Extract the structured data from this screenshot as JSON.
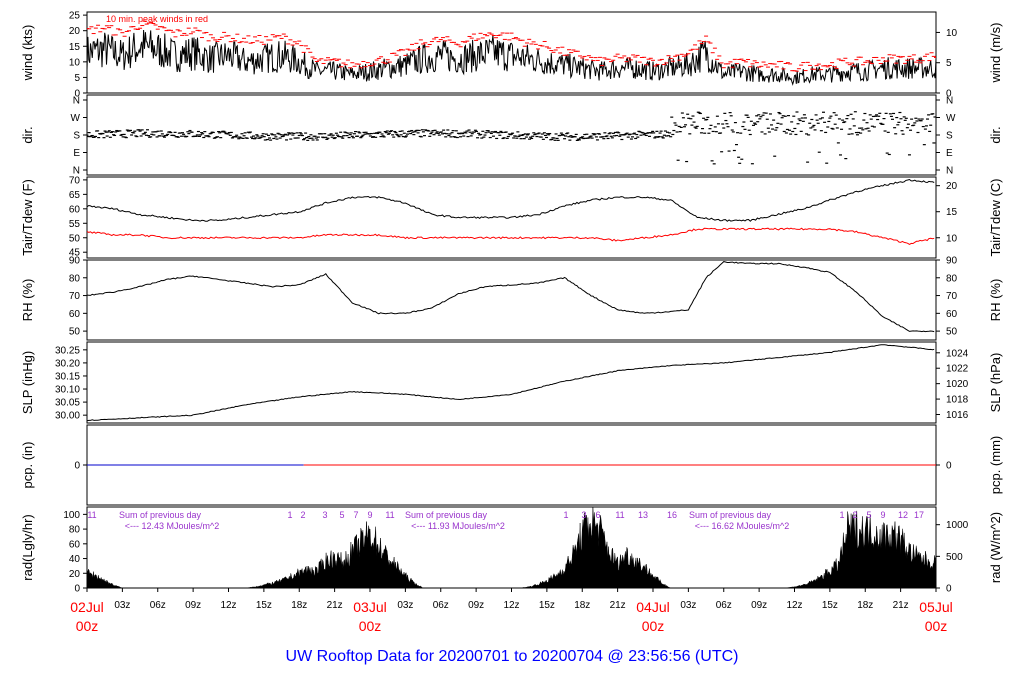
{
  "footer_title": "UW Rooftop Data for 20200701  to  20200704 @ 23:56:56  (UTC)",
  "colors": {
    "axis": "#000000",
    "primary": "#000000",
    "secondary": "#ff0000",
    "precip": "#0000cc",
    "summary": "#9933cc",
    "time_label": "#ff0000",
    "title": "#0000ff"
  },
  "chart_data": [
    {
      "type": "line",
      "id": "wind",
      "ylabel_left": "wind (kts)",
      "ylabel_right": "wind (m/s)",
      "annotation": "10 min. peak winds in red",
      "ylim": [
        0,
        26
      ],
      "yticks_left": [
        "0",
        "5",
        "10",
        "15",
        "20",
        "25"
      ],
      "yticks_right": [
        "0",
        "5",
        "10"
      ],
      "series": [
        {
          "values_x": [
            0,
            2,
            4,
            6,
            8,
            10,
            12,
            14,
            16,
            18,
            20,
            22,
            24,
            26,
            28,
            30,
            32,
            34,
            36,
            38,
            40,
            42,
            44,
            46,
            48,
            50,
            52,
            54,
            56,
            58,
            60,
            62,
            64,
            66,
            68,
            70,
            72,
            74,
            76,
            78,
            80,
            82,
            84,
            86,
            88,
            90,
            92,
            94,
            96
          ],
          "values": [
            13,
            14,
            12,
            15,
            14,
            12,
            13,
            11,
            12,
            10,
            11,
            12,
            10,
            7,
            7,
            6,
            7,
            8,
            9,
            11,
            12,
            11,
            12,
            13,
            12,
            11,
            10,
            9,
            8,
            7,
            8,
            8,
            7,
            8,
            9,
            13,
            6,
            7,
            6,
            6,
            5,
            6,
            6,
            7,
            7,
            8,
            8,
            8,
            8
          ]
        },
        {
          "values_x": [
            0,
            2,
            4,
            6,
            8,
            10,
            12,
            14,
            16,
            18,
            20,
            22,
            24,
            26,
            28,
            30,
            32,
            34,
            36,
            38,
            40,
            42,
            44,
            46,
            48,
            50,
            52,
            54,
            56,
            58,
            60,
            62,
            64,
            66,
            68,
            70,
            72,
            74,
            76,
            78,
            80,
            82,
            84,
            86,
            88,
            90,
            92,
            94,
            96
          ],
          "values": [
            20,
            21,
            19,
            22,
            21,
            19,
            20,
            18,
            18,
            17,
            17,
            18,
            16,
            10,
            10,
            9,
            10,
            11,
            13,
            16,
            17,
            16,
            18,
            19,
            18,
            16,
            15,
            13,
            12,
            10,
            11,
            11,
            10,
            11,
            13,
            17,
            9,
            10,
            9,
            9,
            8,
            9,
            9,
            10,
            10,
            11,
            11,
            11,
            12
          ]
        }
      ]
    },
    {
      "type": "scatter",
      "id": "dir",
      "ylabel_left": "dir.",
      "ylabel_right": "dir.",
      "ylim": [
        0,
        360
      ],
      "yticks_left": [
        "N",
        "W",
        "S",
        "E",
        "N"
      ],
      "yticks_right": [
        "N",
        "W",
        "S",
        "E",
        "N"
      ]
    },
    {
      "type": "line",
      "id": "temp",
      "ylabel_left": "Tair/Tdew (F)",
      "ylabel_right": "Tair/Tdew (C)",
      "ylim": [
        43,
        71
      ],
      "yticks_left": [
        "45",
        "50",
        "55",
        "60",
        "65",
        "70"
      ],
      "yticks_right": [
        "10",
        "15",
        "20"
      ],
      "series": [
        {
          "values_x": [
            0,
            3,
            6,
            9,
            12,
            15,
            18,
            21,
            24,
            27,
            30,
            33,
            36,
            39,
            42,
            45,
            48,
            51,
            54,
            57,
            60,
            63,
            66,
            69,
            72,
            75,
            78,
            81,
            84,
            87,
            90,
            93,
            96
          ],
          "values": [
            61,
            60,
            58,
            57,
            56,
            56,
            57,
            58,
            59,
            62,
            64,
            64,
            62,
            58,
            57,
            57,
            57,
            58,
            61,
            63,
            64,
            64,
            63,
            57,
            56,
            56,
            58,
            60,
            63,
            66,
            68,
            70,
            69
          ]
        },
        {
          "values_x": [
            0,
            3,
            6,
            9,
            12,
            15,
            18,
            21,
            24,
            27,
            30,
            33,
            36,
            39,
            42,
            45,
            48,
            51,
            54,
            57,
            60,
            63,
            66,
            69,
            72,
            75,
            78,
            81,
            84,
            87,
            90,
            93,
            96
          ],
          "values": [
            52,
            51,
            51,
            50,
            50,
            50,
            50,
            50,
            50,
            51,
            51,
            51,
            50,
            50,
            50,
            50,
            50,
            50,
            50,
            50,
            49,
            50,
            51,
            53,
            53,
            53,
            53,
            53,
            53,
            52,
            50,
            48,
            50
          ]
        }
      ]
    },
    {
      "type": "line",
      "id": "rh",
      "ylabel_left": "RH (%)",
      "ylabel_right": "RH (%)",
      "ylim": [
        45,
        90
      ],
      "yticks_left": [
        "50",
        "60",
        "70",
        "80",
        "90"
      ],
      "yticks_right": [
        "50",
        "60",
        "70",
        "80",
        "90"
      ],
      "series": [
        {
          "values_x": [
            0,
            3,
            6,
            9,
            12,
            15,
            18,
            21,
            24,
            27,
            30,
            33,
            36,
            39,
            42,
            45,
            48,
            51,
            54,
            57,
            60,
            63,
            66,
            68,
            70,
            72,
            75,
            78,
            81,
            84,
            87,
            90,
            93,
            96
          ],
          "values": [
            70,
            72,
            75,
            79,
            81,
            79,
            77,
            75,
            76,
            82,
            66,
            60,
            60,
            63,
            71,
            75,
            76,
            77,
            80,
            70,
            62,
            60,
            61,
            62,
            80,
            89,
            88,
            88,
            86,
            83,
            72,
            58,
            50,
            50
          ]
        }
      ]
    },
    {
      "type": "line",
      "id": "slp",
      "ylabel_left": "SLP (inHg)",
      "ylabel_right": "SLP (hPa)",
      "ylim": [
        29.97,
        30.28
      ],
      "yticks_left": [
        "30.00",
        "30.05",
        "30.10",
        "30.15",
        "30.20",
        "30.25"
      ],
      "yticks_right": [
        "1016",
        "1018",
        "1020",
        "1022",
        "1024"
      ],
      "series": [
        {
          "values_x": [
            0,
            6,
            12,
            18,
            24,
            30,
            36,
            42,
            48,
            54,
            60,
            66,
            72,
            78,
            84,
            90,
            96
          ],
          "values": [
            29.98,
            29.99,
            30.0,
            30.04,
            30.07,
            30.09,
            30.08,
            30.06,
            30.08,
            30.13,
            30.17,
            30.19,
            30.2,
            30.22,
            30.24,
            30.27,
            30.25
          ]
        }
      ]
    },
    {
      "type": "line",
      "id": "pcp",
      "ylabel_left": "pcp. (in)",
      "ylabel_right": "pcp. (mm)",
      "ylim": [
        -1,
        1
      ],
      "yticks_left": [
        "0"
      ],
      "yticks_right": [
        "0"
      ]
    },
    {
      "type": "area",
      "id": "rad",
      "ylabel_left": "rad(Lgly/hr)",
      "ylabel_right": "rad (W/m^2)",
      "ylim": [
        0,
        110
      ],
      "yticks_left": [
        "0",
        "20",
        "40",
        "60",
        "80",
        "100"
      ],
      "yticks_right": [
        "0",
        "500",
        "1000"
      ],
      "summaries": [
        {
          "title": "Sum of previous day",
          "value": "<--- 12.43 MJoules/m^2"
        },
        {
          "title": "Sum of previous day",
          "value": "<--- 11.93 MJoules/m^2"
        },
        {
          "title": "Sum of previous day",
          "value": "<--- 16.62 MJoules/m^2"
        }
      ],
      "hour_marks": [
        {
          "day": 0,
          "marks": [
            "11"
          ]
        },
        {
          "day": 1,
          "marks": [
            "1",
            "2",
            "3",
            "5",
            "7",
            "9",
            "11"
          ]
        },
        {
          "day": 2,
          "marks": [
            "1",
            "3",
            "6",
            "11",
            "13",
            "16"
          ]
        },
        {
          "day": 3,
          "marks": [
            "1",
            "2",
            "5",
            "9",
            "12",
            "17"
          ]
        }
      ],
      "series": [
        {
          "values_x": [
            0,
            1,
            2,
            3,
            4,
            5,
            6,
            7,
            8,
            18,
            19,
            20,
            21,
            22,
            23,
            24,
            25,
            26,
            27,
            28,
            29,
            30,
            31,
            32,
            33,
            34,
            35,
            36,
            37,
            38,
            39,
            40,
            41,
            42,
            43,
            44,
            45,
            46,
            47,
            48,
            49,
            50,
            51,
            52,
            53,
            54,
            55,
            56,
            57,
            58,
            59,
            60,
            61,
            62,
            63,
            64,
            65,
            66,
            67,
            68,
            69,
            70,
            71,
            72,
            73,
            74,
            75,
            76,
            77,
            78,
            79,
            80,
            81,
            82,
            83,
            84,
            85,
            86,
            87,
            88,
            89,
            90,
            91,
            92,
            93,
            94,
            95,
            96
          ],
          "values": [
            25,
            20,
            12,
            5,
            0,
            0,
            0,
            0,
            0,
            0,
            2,
            5,
            8,
            12,
            18,
            25,
            30,
            28,
            45,
            50,
            42,
            60,
            75,
            90,
            70,
            50,
            35,
            20,
            8,
            0,
            0,
            0,
            0,
            0,
            0,
            0,
            0,
            0,
            0,
            0,
            0,
            2,
            6,
            12,
            20,
            32,
            55,
            90,
            110,
            95,
            60,
            40,
            55,
            45,
            35,
            20,
            8,
            0,
            0,
            0,
            0,
            0,
            0,
            0,
            0,
            0,
            0,
            0,
            0,
            0,
            0,
            2,
            5,
            10,
            18,
            28,
            40,
            95,
            98,
            95,
            92,
            85,
            90,
            80,
            60,
            50,
            45,
            40
          ]
        }
      ]
    }
  ],
  "time_axis": {
    "range_hours": [
      0,
      96
    ],
    "ticks": [
      "02Jul",
      "03z",
      "06z",
      "09z",
      "12z",
      "15z",
      "18z",
      "21z",
      "03Jul",
      "03z",
      "06z",
      "09z",
      "12z",
      "15z",
      "18z",
      "21z",
      "04Jul",
      "03z",
      "06z",
      "09z",
      "12z",
      "15z",
      "18z",
      "21z",
      "05Jul"
    ],
    "day_labels": [
      {
        "date": "02Jul",
        "hour": "00z"
      },
      {
        "date": "03Jul",
        "hour": "00z"
      },
      {
        "date": "04Jul",
        "hour": "00z"
      },
      {
        "date": "05Jul",
        "hour": "00z"
      }
    ]
  }
}
